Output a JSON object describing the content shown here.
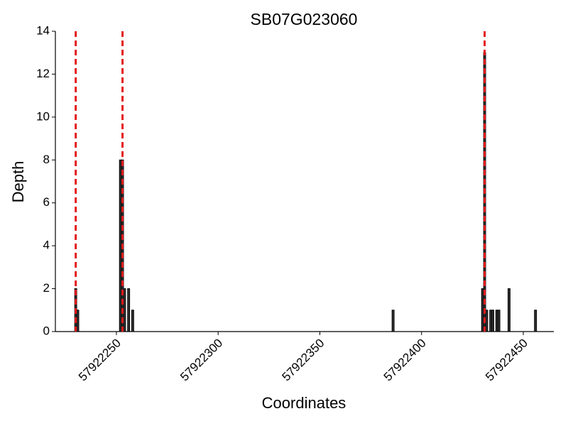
{
  "chart_data": {
    "type": "bar",
    "title": "SB07G023060",
    "x_label": "Coordinates",
    "y_label": "Depth",
    "x": [
      57922230,
      57922231,
      57922252,
      57922253,
      57922254,
      57922256,
      57922258,
      57922386,
      57922430,
      57922431,
      57922432,
      57922434,
      57922435,
      57922437,
      57922438,
      57922443,
      57922456
    ],
    "values": [
      2,
      1,
      8,
      8,
      2,
      2,
      1,
      1,
      2,
      13,
      1,
      1,
      1,
      1,
      1,
      2,
      1
    ],
    "color": "#333333",
    "edge_color": "#000000",
    "vlines": [
      57922230,
      57922253,
      57922431
    ],
    "vline_color": "#e41a1c",
    "xlim": [
      57922220,
      57922465
    ],
    "xticks": [
      57922250,
      57922300,
      57922350,
      57922400,
      57922450
    ],
    "ylim": [
      0,
      14
    ],
    "yticks": [
      0,
      2,
      4,
      6,
      8,
      10,
      12,
      14
    ],
    "grid": false
  }
}
